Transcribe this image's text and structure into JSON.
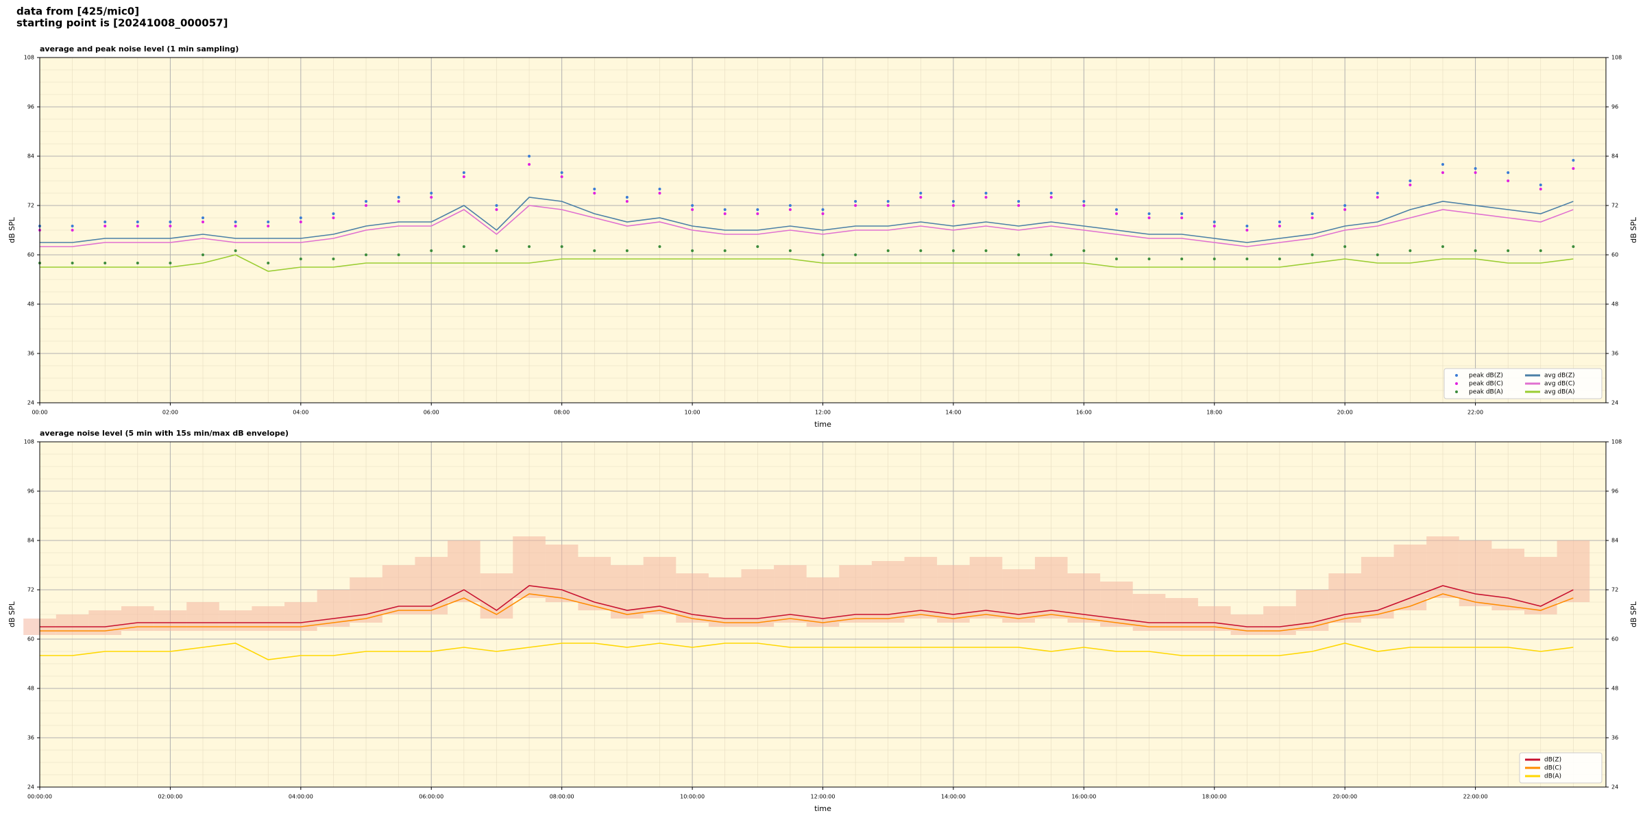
{
  "header": {
    "source": "data from [425/mic0]",
    "start": "starting point is [20241008_000057]"
  },
  "chart_data": [
    {
      "type": "line",
      "title": "average and peak noise level (1 min sampling)",
      "xlabel": "time",
      "ylabel": "dB SPL",
      "background": "#fff8dc",
      "grid": true,
      "legend": "lower right",
      "legend_columns": 2,
      "xlim": [
        0,
        24
      ],
      "ylim": [
        24,
        108
      ],
      "yticks": [
        24,
        36,
        48,
        60,
        72,
        84,
        96,
        108
      ],
      "xticks": [
        {
          "value": 0,
          "label": "00:00"
        },
        {
          "value": 2,
          "label": "02:00"
        },
        {
          "value": 4,
          "label": "04:00"
        },
        {
          "value": 6,
          "label": "06:00"
        },
        {
          "value": 8,
          "label": "08:00"
        },
        {
          "value": 10,
          "label": "10:00"
        },
        {
          "value": 12,
          "label": "12:00"
        },
        {
          "value": 14,
          "label": "14:00"
        },
        {
          "value": 16,
          "label": "16:00"
        },
        {
          "value": 18,
          "label": "18:00"
        },
        {
          "value": 20,
          "label": "20:00"
        },
        {
          "value": 22,
          "label": "22:00"
        }
      ],
      "x": [
        0,
        0.5,
        1,
        1.5,
        2,
        2.5,
        3,
        3.5,
        4,
        4.5,
        5,
        5.5,
        6,
        6.5,
        7,
        7.5,
        8,
        8.5,
        9,
        9.5,
        10,
        10.5,
        11,
        11.5,
        12,
        12.5,
        13,
        13.5,
        14,
        14.5,
        15,
        15.5,
        16,
        16.5,
        17,
        17.5,
        18,
        18.5,
        19,
        19.5,
        20,
        20.5,
        21,
        21.5,
        22,
        22.5,
        23,
        23.5
      ],
      "series": [
        {
          "name": "peak dB(Z)",
          "style": "dots",
          "color": "#3a7bd5",
          "values": [
            67,
            67,
            68,
            68,
            68,
            69,
            68,
            68,
            69,
            70,
            73,
            74,
            75,
            80,
            72,
            84,
            80,
            76,
            74,
            76,
            72,
            71,
            71,
            72,
            71,
            73,
            73,
            75,
            73,
            75,
            73,
            75,
            73,
            71,
            70,
            70,
            68,
            67,
            68,
            70,
            72,
            75,
            78,
            82,
            81,
            80,
            77,
            83
          ]
        },
        {
          "name": "peak dB(C)",
          "style": "dots",
          "color": "#e020e0",
          "values": [
            66,
            66,
            67,
            67,
            67,
            68,
            67,
            67,
            68,
            69,
            72,
            73,
            74,
            79,
            71,
            82,
            79,
            75,
            73,
            75,
            71,
            70,
            70,
            71,
            70,
            72,
            72,
            74,
            72,
            74,
            72,
            74,
            72,
            70,
            69,
            69,
            67,
            66,
            67,
            69,
            71,
            74,
            77,
            80,
            80,
            78,
            76,
            81
          ]
        },
        {
          "name": "peak dB(A)",
          "style": "dots",
          "color": "#3c8c3c",
          "values": [
            58,
            58,
            58,
            58,
            58,
            60,
            61,
            58,
            59,
            59,
            60,
            60,
            61,
            62,
            61,
            62,
            62,
            61,
            61,
            62,
            61,
            61,
            62,
            61,
            60,
            60,
            61,
            61,
            61,
            61,
            60,
            60,
            61,
            59,
            59,
            59,
            59,
            59,
            59,
            60,
            62,
            60,
            61,
            62,
            61,
            61,
            61,
            62
          ]
        },
        {
          "name": "avg dB(Z)",
          "style": "line",
          "color": "#4a7fa6",
          "values": [
            63,
            63,
            64,
            64,
            64,
            65,
            64,
            64,
            64,
            65,
            67,
            68,
            68,
            72,
            66,
            74,
            73,
            70,
            68,
            69,
            67,
            66,
            66,
            67,
            66,
            67,
            67,
            68,
            67,
            68,
            67,
            68,
            67,
            66,
            65,
            65,
            64,
            63,
            64,
            65,
            67,
            68,
            71,
            73,
            72,
            71,
            70,
            73
          ]
        },
        {
          "name": "avg dB(C)",
          "style": "line",
          "color": "#e070d0",
          "values": [
            62,
            62,
            63,
            63,
            63,
            64,
            63,
            63,
            63,
            64,
            66,
            67,
            67,
            71,
            65,
            72,
            71,
            69,
            67,
            68,
            66,
            65,
            65,
            66,
            65,
            66,
            66,
            67,
            66,
            67,
            66,
            67,
            66,
            65,
            64,
            64,
            63,
            62,
            63,
            64,
            66,
            67,
            69,
            71,
            70,
            69,
            68,
            71
          ]
        },
        {
          "name": "avg dB(A)",
          "style": "line",
          "color": "#9acd32",
          "values": [
            57,
            57,
            57,
            57,
            57,
            58,
            60,
            56,
            57,
            57,
            58,
            58,
            58,
            58,
            58,
            58,
            59,
            59,
            59,
            59,
            59,
            59,
            59,
            59,
            58,
            58,
            58,
            58,
            58,
            58,
            58,
            58,
            58,
            57,
            57,
            57,
            57,
            57,
            57,
            58,
            59,
            58,
            58,
            59,
            59,
            58,
            58,
            59
          ]
        }
      ]
    },
    {
      "type": "line",
      "title": "average noise level (5 min with 15s min/max dB envelope)",
      "xlabel": "time",
      "ylabel": "dB SPL",
      "background": "#fff8dc",
      "grid": true,
      "legend": "lower right",
      "legend_columns": 1,
      "xlim": [
        0,
        24
      ],
      "ylim": [
        24,
        108
      ],
      "yticks": [
        24,
        36,
        48,
        60,
        72,
        84,
        96,
        108
      ],
      "xticks": [
        {
          "value": 0,
          "label": "00:00:00"
        },
        {
          "value": 2,
          "label": "02:00:00"
        },
        {
          "value": 4,
          "label": "04:00:00"
        },
        {
          "value": 6,
          "label": "06:00:00"
        },
        {
          "value": 8,
          "label": "08:00:00"
        },
        {
          "value": 10,
          "label": "10:00:00"
        },
        {
          "value": 12,
          "label": "12:00:00"
        },
        {
          "value": 14,
          "label": "14:00:00"
        },
        {
          "value": 16,
          "label": "16:00:00"
        },
        {
          "value": 18,
          "label": "18:00:00"
        },
        {
          "value": 20,
          "label": "20:00:00"
        },
        {
          "value": 22,
          "label": "22:00:00"
        }
      ],
      "x": [
        0,
        0.5,
        1,
        1.5,
        2,
        2.5,
        3,
        3.5,
        4,
        4.5,
        5,
        5.5,
        6,
        6.5,
        7,
        7.5,
        8,
        8.5,
        9,
        9.5,
        10,
        10.5,
        11,
        11.5,
        12,
        12.5,
        13,
        13.5,
        14,
        14.5,
        15,
        15.5,
        16,
        16.5,
        17,
        17.5,
        18,
        18.5,
        19,
        19.5,
        20,
        20.5,
        21,
        21.5,
        22,
        22.5,
        23,
        23.5
      ],
      "envelope": {
        "color": "#f4b6a0",
        "lower": [
          61,
          61,
          61,
          62,
          62,
          62,
          62,
          62,
          62,
          63,
          64,
          66,
          66,
          69,
          65,
          70,
          69,
          67,
          65,
          66,
          64,
          63,
          63,
          64,
          63,
          64,
          64,
          65,
          64,
          65,
          64,
          65,
          64,
          63,
          62,
          62,
          62,
          61,
          61,
          62,
          64,
          65,
          67,
          70,
          68,
          67,
          66,
          69
        ],
        "upper": [
          65,
          66,
          67,
          68,
          67,
          69,
          67,
          68,
          69,
          72,
          75,
          78,
          80,
          84,
          76,
          85,
          83,
          80,
          78,
          80,
          76,
          75,
          77,
          78,
          75,
          78,
          79,
          80,
          78,
          80,
          77,
          80,
          76,
          74,
          71,
          70,
          68,
          66,
          68,
          72,
          76,
          80,
          83,
          85,
          84,
          82,
          80,
          84
        ]
      },
      "series": [
        {
          "name": "dB(Z)",
          "style": "line",
          "color": "#c8102e",
          "values": [
            63,
            63,
            63,
            64,
            64,
            64,
            64,
            64,
            64,
            65,
            66,
            68,
            68,
            72,
            67,
            73,
            72,
            69,
            67,
            68,
            66,
            65,
            65,
            66,
            65,
            66,
            66,
            67,
            66,
            67,
            66,
            67,
            66,
            65,
            64,
            64,
            64,
            63,
            63,
            64,
            66,
            67,
            70,
            73,
            71,
            70,
            68,
            72
          ]
        },
        {
          "name": "dB(C)",
          "style": "line",
          "color": "#ff8c00",
          "values": [
            62,
            62,
            62,
            63,
            63,
            63,
            63,
            63,
            63,
            64,
            65,
            67,
            67,
            70,
            66,
            71,
            70,
            68,
            66,
            67,
            65,
            64,
            64,
            65,
            64,
            65,
            65,
            66,
            65,
            66,
            65,
            66,
            65,
            64,
            63,
            63,
            63,
            62,
            62,
            63,
            65,
            66,
            68,
            71,
            69,
            68,
            67,
            70
          ]
        },
        {
          "name": "dB(A)",
          "style": "line",
          "color": "#ffd700",
          "values": [
            56,
            56,
            57,
            57,
            57,
            58,
            59,
            55,
            56,
            56,
            57,
            57,
            57,
            58,
            57,
            58,
            59,
            59,
            58,
            59,
            58,
            59,
            59,
            58,
            58,
            58,
            58,
            58,
            58,
            58,
            58,
            57,
            58,
            57,
            57,
            56,
            56,
            56,
            56,
            57,
            59,
            57,
            58,
            58,
            58,
            58,
            57,
            58
          ]
        }
      ]
    }
  ]
}
